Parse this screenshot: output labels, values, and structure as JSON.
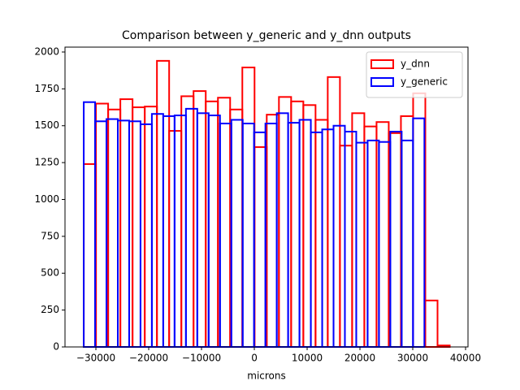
{
  "chart_data": {
    "type": "histogram",
    "title": "Comparison between y_generic and y_dnn outputs",
    "xlabel": "microns",
    "xlim": [
      -35850,
      40460
    ],
    "ylim": [
      0,
      2033
    ],
    "xticks": [
      {
        "value": -30000,
        "label": "−30000"
      },
      {
        "value": -20000,
        "label": "−20000"
      },
      {
        "value": -10000,
        "label": "−10000"
      },
      0,
      10000,
      20000,
      30000,
      40000
    ],
    "yticks": [
      0,
      250,
      500,
      750,
      1000,
      1250,
      1500,
      1750,
      2000
    ],
    "legend": "upper right",
    "series": [
      {
        "name": "y_dnn",
        "color": "#ff0000",
        "bins": [
          -32300,
          -29990,
          -27680,
          -25370,
          -23060,
          -20750,
          -18440,
          -16130,
          -13820,
          -11510,
          -9200,
          -6890,
          -4580,
          -2270,
          40,
          2350,
          4660,
          6970,
          9280,
          11590,
          13900,
          16210,
          18520,
          20830,
          23140,
          25450,
          27760,
          30070,
          32380,
          34690,
          37000
        ],
        "values": [
          1240,
          1650,
          1610,
          1680,
          1625,
          1630,
          1940,
          1465,
          1700,
          1735,
          1665,
          1690,
          1610,
          1895,
          1355,
          1575,
          1695,
          1665,
          1640,
          1540,
          1830,
          1365,
          1585,
          1495,
          1525,
          1450,
          1565,
          1720,
          315,
          10
        ]
      },
      {
        "name": "y_generic",
        "color": "#0000ff",
        "bins": [
          -32300,
          -30150,
          -28000,
          -25850,
          -23700,
          -21550,
          -19400,
          -17250,
          -15100,
          -12950,
          -10800,
          -8650,
          -6500,
          -4350,
          -2200,
          -50,
          2100,
          4250,
          6400,
          8550,
          10700,
          12850,
          15000,
          17150,
          19300,
          21450,
          23600,
          25750,
          27900,
          30050,
          32200
        ],
        "values": [
          1660,
          1530,
          1545,
          1535,
          1530,
          1510,
          1580,
          1565,
          1570,
          1615,
          1585,
          1570,
          1515,
          1540,
          1515,
          1455,
          1515,
          1585,
          1520,
          1540,
          1455,
          1475,
          1500,
          1460,
          1385,
          1400,
          1390,
          1460,
          1400,
          1550
        ]
      }
    ]
  }
}
